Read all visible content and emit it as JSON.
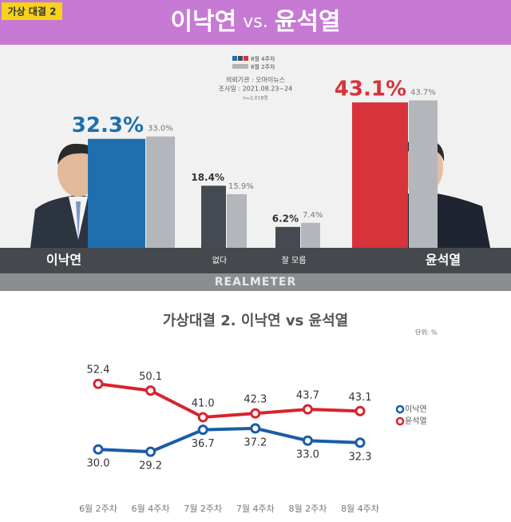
{
  "chart_data": [
    {
      "type": "bar",
      "tag": "가상 대결 2",
      "title_parts": [
        "이낙연",
        "vs.",
        "윤석열"
      ],
      "source": "의뢰기관 : 오마이뉴스",
      "survey_date": "조사일 : 2021.08.23~24",
      "sample": "n=2,018명",
      "brand": "REALMETER",
      "categories": [
        "이낙연",
        "없다",
        "잘 모름",
        "윤석열"
      ],
      "series": [
        {
          "name": "8월 4주차",
          "colors": [
            "#1f6fae",
            "#454a52",
            "#454a52",
            "#d6333a"
          ],
          "values": [
            32.3,
            18.4,
            6.2,
            43.1
          ],
          "value_labels": [
            "32.3%",
            "18.4%",
            "6.2%",
            "43.1%"
          ]
        },
        {
          "name": "8월 2주차",
          "color": "#b3b6ba",
          "values": [
            33.0,
            15.9,
            7.4,
            43.7
          ],
          "value_labels": [
            "33.0%",
            "15.9%",
            "7.4%",
            "43.7%"
          ]
        }
      ]
    },
    {
      "type": "line",
      "title": "가상대결 2. 이낙연 vs 윤석열",
      "unit": "단위: %",
      "categories": [
        "6월 2주차",
        "6월 4주차",
        "7월 2주차",
        "7월 4주차",
        "8월 2주차",
        "8월 4주차"
      ],
      "series": [
        {
          "name": "이낙연",
          "color": "#1a5ca8",
          "values": [
            30.0,
            29.2,
            36.7,
            37.2,
            33.0,
            32.3
          ],
          "value_labels": [
            "30.0",
            "29.2",
            "36.7",
            "37.2",
            "33.0",
            "32.3"
          ]
        },
        {
          "name": "윤석열",
          "color": "#d8232f",
          "values": [
            52.4,
            50.1,
            41.0,
            42.3,
            43.7,
            43.1
          ],
          "value_labels": [
            "52.4",
            "50.1",
            "41.0",
            "42.3",
            "43.7",
            "43.1"
          ]
        }
      ]
    }
  ]
}
